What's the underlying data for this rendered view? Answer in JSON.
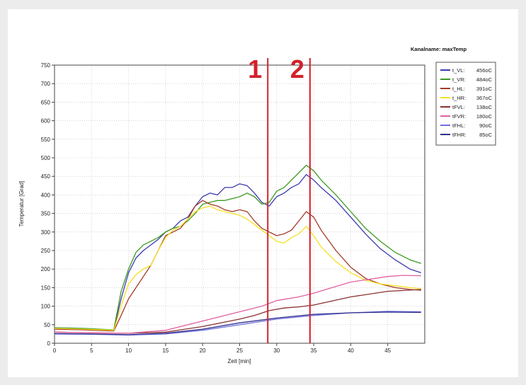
{
  "chart_data": {
    "type": "line",
    "title": "",
    "channel_label": "Kanalname: maxTemp",
    "xlabel": "Zeit [min]",
    "ylabel": "Temperatur [Grad]",
    "xlim": [
      0,
      50
    ],
    "ylim": [
      0,
      750
    ],
    "x_ticks": [
      0,
      5,
      10,
      15,
      20,
      25,
      30,
      35,
      40,
      45
    ],
    "y_ticks": [
      0,
      50,
      100,
      150,
      200,
      250,
      300,
      350,
      400,
      450,
      500,
      550,
      600,
      650,
      700,
      750
    ],
    "grid": true,
    "legend_position": "right",
    "markers": [
      {
        "label": "1",
        "x": 28.8,
        "color": "#d3202a"
      },
      {
        "label": "2",
        "x": 34.5,
        "color": "#d3202a"
      }
    ],
    "series": [
      {
        "name": "t_VL",
        "legend_value": "456oC",
        "color": "#3b3bb0",
        "x": [
          0,
          4,
          8,
          9,
          10,
          11,
          12,
          13,
          14,
          15,
          16,
          17,
          18,
          19,
          20,
          21,
          22,
          23,
          24,
          25,
          26,
          27,
          28,
          29,
          30,
          31,
          32,
          33,
          34,
          35,
          36,
          38,
          40,
          42,
          44,
          46,
          48,
          49.5
        ],
        "y": [
          40,
          38,
          35,
          120,
          190,
          230,
          250,
          265,
          280,
          300,
          310,
          330,
          340,
          370,
          395,
          405,
          400,
          420,
          420,
          430,
          425,
          405,
          380,
          370,
          395,
          405,
          420,
          430,
          455,
          440,
          420,
          385,
          340,
          295,
          255,
          225,
          200,
          190
        ]
      },
      {
        "name": "t_VR",
        "legend_value": "484oC",
        "color": "#3c9a22",
        "x": [
          0,
          4,
          8,
          9,
          10,
          11,
          12,
          13,
          14,
          15,
          16,
          17,
          18,
          19,
          20,
          21,
          22,
          23,
          24,
          25,
          26,
          27,
          28,
          29,
          30,
          31,
          32,
          33,
          34,
          35,
          36,
          38,
          40,
          42,
          44,
          46,
          48,
          49.5
        ],
        "y": [
          42,
          40,
          36,
          140,
          200,
          245,
          265,
          275,
          285,
          300,
          310,
          315,
          330,
          350,
          375,
          380,
          385,
          385,
          390,
          395,
          405,
          395,
          375,
          380,
          410,
          420,
          440,
          460,
          480,
          465,
          440,
          400,
          355,
          310,
          275,
          245,
          225,
          215
        ]
      },
      {
        "name": "t_HL",
        "legend_value": "391oC",
        "color": "#a33a2a",
        "x": [
          0,
          4,
          8,
          9,
          10,
          11,
          12,
          13,
          14,
          15,
          16,
          17,
          18,
          19,
          20,
          21,
          22,
          23,
          24,
          25,
          26,
          27,
          28,
          29,
          30,
          31,
          32,
          33,
          34,
          35,
          36,
          38,
          40,
          42,
          44,
          46,
          48,
          49.5
        ],
        "y": [
          38,
          36,
          33,
          75,
          120,
          150,
          180,
          210,
          250,
          290,
          300,
          310,
          335,
          370,
          385,
          375,
          370,
          360,
          355,
          360,
          355,
          330,
          310,
          300,
          290,
          295,
          305,
          330,
          355,
          340,
          305,
          250,
          205,
          175,
          160,
          150,
          145,
          143
        ]
      },
      {
        "name": "t_HR",
        "legend_value": "367oC",
        "color": "#f5e020",
        "x": [
          0,
          4,
          8,
          9,
          10,
          11,
          12,
          13,
          14,
          15,
          16,
          17,
          18,
          19,
          20,
          21,
          22,
          23,
          24,
          25,
          26,
          27,
          28,
          29,
          30,
          31,
          32,
          33,
          34,
          35,
          36,
          38,
          40,
          42,
          44,
          46,
          48,
          49.5
        ],
        "y": [
          40,
          38,
          35,
          100,
          160,
          185,
          200,
          210,
          250,
          285,
          305,
          315,
          335,
          355,
          365,
          370,
          360,
          355,
          350,
          345,
          335,
          320,
          305,
          290,
          275,
          270,
          285,
          295,
          315,
          290,
          260,
          220,
          190,
          170,
          160,
          155,
          150,
          147
        ]
      },
      {
        "name": "tFVL",
        "legend_value": "138oC",
        "color": "#8a3030",
        "x": [
          0,
          5,
          10,
          15,
          20,
          25,
          27,
          29,
          31,
          33,
          35,
          40,
          45,
          49.5
        ],
        "y": [
          30,
          28,
          27,
          30,
          45,
          65,
          75,
          88,
          95,
          98,
          103,
          125,
          140,
          145
        ]
      },
      {
        "name": "tFVR",
        "legend_value": "180oC",
        "color": "#e060a0",
        "x": [
          0,
          5,
          10,
          15,
          20,
          25,
          28,
          30,
          33,
          35,
          40,
          45,
          47,
          49.5
        ],
        "y": [
          30,
          28,
          27,
          35,
          60,
          85,
          100,
          115,
          125,
          135,
          165,
          180,
          183,
          182
        ]
      },
      {
        "name": "tFHL",
        "legend_value": "90oC",
        "color": "#7070e0",
        "x": [
          0,
          5,
          10,
          15,
          20,
          25,
          30,
          35,
          40,
          45,
          49.5
        ],
        "y": [
          25,
          24,
          22,
          25,
          35,
          50,
          65,
          75,
          82,
          86,
          85
        ]
      },
      {
        "name": "tFHR",
        "legend_value": "85oC",
        "color": "#30308a",
        "x": [
          0,
          5,
          10,
          15,
          20,
          25,
          30,
          35,
          40,
          45,
          49.5
        ],
        "y": [
          26,
          25,
          23,
          27,
          38,
          55,
          68,
          78,
          82,
          84,
          83
        ]
      }
    ]
  }
}
